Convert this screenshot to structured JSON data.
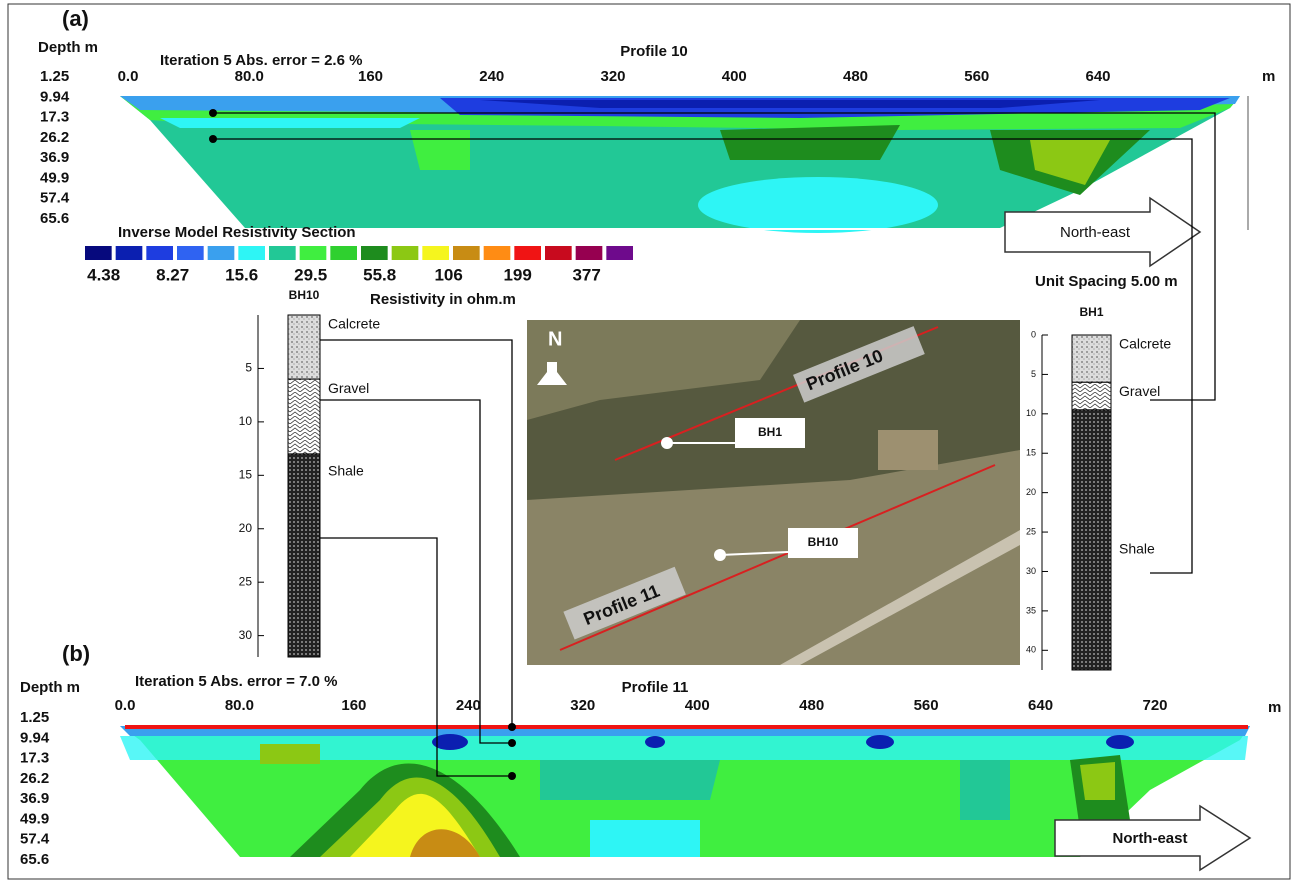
{
  "panels": [
    {
      "label": "(a)",
      "depth_title": "Depth m",
      "depths": [
        "1.25",
        "9.94",
        "17.3",
        "26.2",
        "36.9",
        "49.9",
        "57.4",
        "65.6"
      ],
      "iteration": "Iteration 5 Abs. error = 2.6 %",
      "profile": "Profile 10",
      "x_labels": [
        "0.0",
        "80.0",
        "160",
        "240",
        "320",
        "400",
        "480",
        "560",
        "640"
      ],
      "x_unit": "m",
      "direction": "North-east"
    },
    {
      "label": "(b)",
      "depth_title": "Depth m",
      "depths": [
        "1.25",
        "9.94",
        "17.3",
        "26.2",
        "36.9",
        "49.9",
        "57.4",
        "65.6"
      ],
      "iteration": "Iteration 5 Abs. error = 7.0 %",
      "profile": "Profile 11",
      "x_labels": [
        "0.0",
        "80.0",
        "160",
        "240",
        "320",
        "400",
        "480",
        "560",
        "640",
        "720"
      ],
      "x_unit": "m",
      "direction": "North-east"
    }
  ],
  "legend": {
    "title": "Inverse Model Resistivity Section",
    "colors": [
      "#06097d",
      "#0b1fb0",
      "#1e3de0",
      "#2f63f2",
      "#3aa0ee",
      "#2ef5f5",
      "#22c896",
      "#40ee40",
      "#2fd02f",
      "#1e8c1e",
      "#8cc814",
      "#f5f51e",
      "#c88c14",
      "#ff8c14",
      "#f01414",
      "#c80a1e",
      "#960050",
      "#6e0a8c"
    ],
    "labels": [
      "4.38",
      "8.27",
      "15.6",
      "29.5",
      "55.8",
      "106",
      "199",
      "377"
    ],
    "unit": "Resistivity in ohm.m"
  },
  "unit_spacing": "Unit Spacing 5.00 m",
  "boreholes": [
    {
      "name": "BH10",
      "ticks": [
        5,
        10,
        15,
        20,
        25,
        30
      ],
      "range": [
        0,
        32
      ],
      "layers": [
        {
          "name": "Calcrete",
          "top": 0,
          "bottom": 6
        },
        {
          "name": "Gravel",
          "top": 6,
          "bottom": 13
        },
        {
          "name": "Shale",
          "top": 13,
          "bottom": 32
        }
      ]
    },
    {
      "name": "BH1",
      "ticks": [
        0,
        5,
        10,
        15,
        20,
        25,
        30,
        35,
        40
      ],
      "range": [
        0,
        42.5
      ],
      "layers": [
        {
          "name": "Calcrete",
          "top": 0,
          "bottom": 6
        },
        {
          "name": "Gravel",
          "top": 6,
          "bottom": 9.5
        },
        {
          "name": "Shale",
          "top": 9.5,
          "bottom": 42.5
        }
      ]
    }
  ],
  "map": {
    "north": "N",
    "profiles": [
      "Profile 10",
      "Profile 11"
    ],
    "boreholes": [
      "BH1",
      "BH10"
    ]
  }
}
